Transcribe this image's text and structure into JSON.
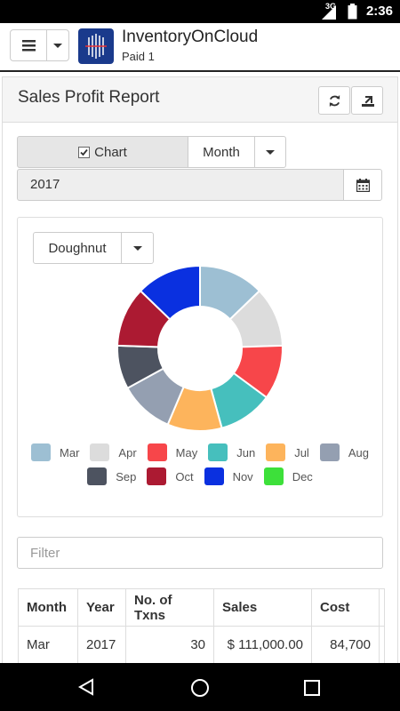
{
  "status_bar": {
    "network": "3G",
    "time": "2:36"
  },
  "app": {
    "title": "InventoryOnCloud",
    "subtitle": "Paid 1"
  },
  "report": {
    "title": "Sales Profit Report",
    "chart_toggle_label": "Chart",
    "chart_toggle_checked": true,
    "period": "Month",
    "year": "2017",
    "chart_type": "Doughnut",
    "filter_placeholder": "Filter"
  },
  "chart_data": {
    "type": "pie",
    "variant": "doughnut",
    "categories": [
      "Mar",
      "Apr",
      "May",
      "Jun",
      "Jul",
      "Aug",
      "Sep",
      "Oct",
      "Nov",
      "Dec"
    ],
    "values": [
      12,
      11,
      10,
      10,
      10,
      10,
      8,
      11,
      12,
      0
    ],
    "colors": [
      "#9dbfd3",
      "#dcdcdc",
      "#f7464a",
      "#46bfbd",
      "#fdb45c",
      "#949fb1",
      "#4d5360",
      "#ac1a32",
      "#0a30e0",
      "#3de03a"
    ],
    "legend": "bottom"
  },
  "table": {
    "columns": [
      "Month",
      "Year",
      "No. of Txns",
      "Sales",
      "Cost"
    ],
    "rows": [
      [
        "Mar",
        "2017",
        "30",
        "$ 111,000.00",
        "84,700"
      ]
    ]
  }
}
